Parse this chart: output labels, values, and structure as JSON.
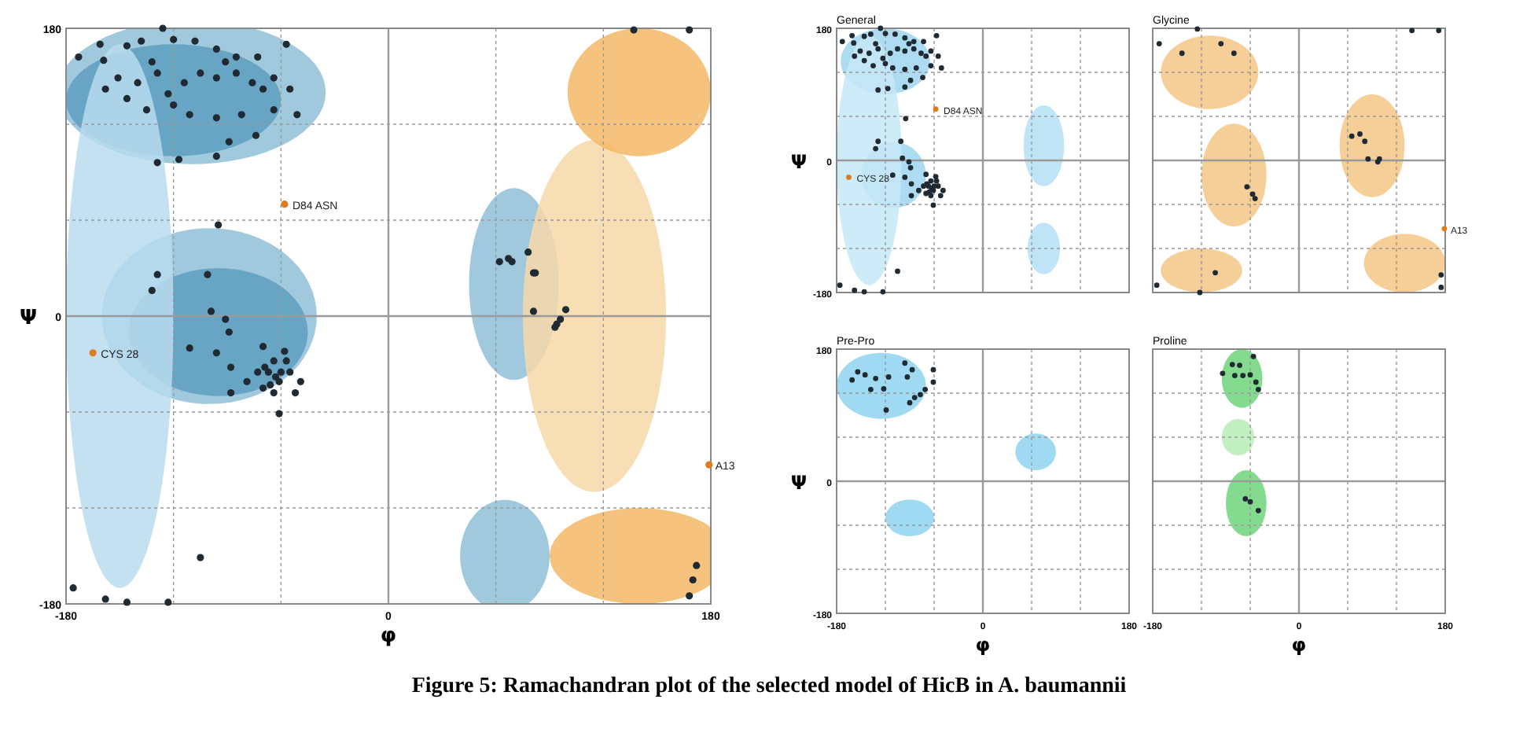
{
  "chart_data": [
    {
      "type": "scatter",
      "xlabel": "φ",
      "ylabel": "Ψ",
      "xlim": [
        -180,
        180
      ],
      "ylim": [
        -180,
        180
      ],
      "xticks": [
        -180,
        {
          "value": -120,
          "label": null
        },
        {
          "value": -60,
          "label": null
        },
        0,
        {
          "value": 60,
          "label": null
        },
        {
          "value": 120,
          "label": null
        },
        180
      ],
      "yticks": [
        -180,
        {
          "value": -120,
          "label": null
        },
        {
          "value": -60,
          "label": null
        },
        0,
        {
          "value": 60,
          "label": null
        },
        {
          "value": 120,
          "label": null
        },
        180
      ],
      "grid": true,
      "marker": "circle",
      "series": [
        {
          "color": "#1f2a33",
          "x": [
            -161,
            -159,
            -146,
            -138,
            -126,
            -120,
            -108,
            -96,
            -85,
            -73,
            -57,
            -151,
            -140,
            -129,
            -123,
            -114,
            -105,
            -96,
            -85,
            -76,
            -64,
            -55,
            -146,
            -135,
            -120,
            -111,
            -96,
            -82,
            -64,
            -51,
            -129,
            -117,
            -96,
            -89,
            -74,
            -132,
            -158,
            -173,
            -91,
            -70,
            -129,
            -101,
            -132,
            -99,
            -91,
            -89,
            -111,
            -96,
            -88,
            -88,
            -79,
            -70,
            -64,
            -67,
            -61,
            -58,
            -55,
            -70,
            -52,
            -61,
            -64,
            -69,
            -57,
            -60,
            -63,
            -66,
            -73,
            -49,
            -95,
            -105,
            -176,
            -158,
            -146,
            -123,
            62,
            67,
            69,
            78,
            81,
            82,
            81,
            93,
            94,
            96,
            99,
            137,
            168,
            172,
            170,
            168
          ],
          "values": [
            170,
            160,
            169,
            172,
            180,
            173,
            172,
            167,
            162,
            162,
            170,
            149,
            146,
            152,
            139,
            146,
            152,
            149,
            152,
            146,
            149,
            142,
            136,
            129,
            132,
            126,
            124,
            126,
            129,
            126,
            96,
            98,
            100,
            109,
            113,
            159,
            142,
            162,
            159,
            142,
            26,
            26,
            16,
            3,
            -2,
            -10,
            -20,
            -23,
            -32,
            -48,
            -41,
            -19,
            -28,
            -35,
            -41,
            -22,
            -35,
            -45,
            -48,
            -61,
            -48,
            -32,
            -28,
            -35,
            -38,
            -43,
            -35,
            -41,
            57,
            -151,
            -170,
            -177,
            -179,
            -179,
            34,
            36,
            34,
            40,
            27,
            27,
            3,
            -7,
            -5,
            -2,
            4,
            179,
            179,
            -156,
            -165,
            -175
          ]
        },
        {
          "color": "#e07b20",
          "x": [
            -58,
            -165,
            179
          ],
          "values": [
            70,
            -23,
            -93
          ]
        }
      ],
      "annotations": [
        {
          "text": "D84 ASN",
          "x": -58,
          "y": 70
        },
        {
          "text": "CYS 28",
          "x": -165,
          "y": -23
        },
        {
          "text": "A13",
          "x": 179,
          "y": -93
        },
        "Figure 5: Ramachandran plot of the selected model of HicB in A. baumannii"
      ]
    },
    {
      "type": "scatter",
      "title": "General",
      "ylabel": "Ψ",
      "xlim": [
        -180,
        180
      ],
      "ylim": [
        -180,
        180
      ],
      "tick_labels": "y",
      "xticks": [
        -180,
        {
          "value": -120,
          "label": null
        },
        {
          "value": -60,
          "label": null
        },
        0,
        {
          "value": 60,
          "label": null
        },
        {
          "value": 120,
          "label": null
        },
        180
      ],
      "yticks": [
        -180,
        {
          "value": -120,
          "label": null
        },
        {
          "value": -60,
          "label": null
        },
        0,
        {
          "value": 60,
          "label": null
        },
        {
          "value": 120,
          "label": null
        },
        180
      ],
      "grid": true,
      "marker": "circle",
      "series": [
        {
          "color": "#1f2a33",
          "x": [
            -161,
            -159,
            -146,
            -138,
            -126,
            -120,
            -108,
            -96,
            -85,
            -73,
            -57,
            -151,
            -140,
            -129,
            -123,
            -114,
            -105,
            -96,
            -85,
            -76,
            -64,
            -55,
            -146,
            -135,
            -120,
            -111,
            -96,
            -82,
            -64,
            -51,
            -129,
            -117,
            -96,
            -89,
            -74,
            -132,
            -158,
            -173,
            -91,
            -70,
            -129,
            -101,
            -132,
            -99,
            -91,
            -89,
            -111,
            -96,
            -88,
            -88,
            -79,
            -70,
            -64,
            -67,
            -61,
            -58,
            -55,
            -70,
            -52,
            -61,
            -64,
            -69,
            -57,
            -60,
            -63,
            -66,
            -73,
            -49,
            -95,
            -105,
            -176,
            -158,
            -146,
            -123
          ],
          "values": [
            170,
            160,
            169,
            172,
            180,
            173,
            172,
            167,
            162,
            162,
            170,
            149,
            146,
            152,
            139,
            146,
            152,
            149,
            152,
            146,
            149,
            142,
            136,
            129,
            132,
            126,
            124,
            126,
            129,
            126,
            96,
            98,
            100,
            109,
            113,
            159,
            142,
            162,
            159,
            142,
            26,
            26,
            16,
            3,
            -2,
            -10,
            -20,
            -23,
            -32,
            -48,
            -41,
            -19,
            -28,
            -35,
            -41,
            -22,
            -35,
            -45,
            -48,
            -61,
            -48,
            -32,
            -28,
            -35,
            -38,
            -43,
            -35,
            -41,
            57,
            -151,
            -170,
            -177,
            -179,
            -179
          ]
        },
        {
          "color": "#e07b20",
          "x": [
            -58,
            -165
          ],
          "values": [
            70,
            -23
          ]
        }
      ],
      "annotations": [
        {
          "text": "D84 ASN",
          "x": -58,
          "y": 70
        },
        {
          "text": "CYS 28",
          "x": -165,
          "y": -23
        }
      ]
    },
    {
      "type": "scatter",
      "title": "Glycine",
      "xlim": [
        -180,
        180
      ],
      "ylim": [
        -180,
        180
      ],
      "tick_labels": false,
      "xticks": [
        -180,
        {
          "value": -120,
          "label": null
        },
        {
          "value": -60,
          "label": null
        },
        0,
        {
          "value": 60,
          "label": null
        },
        {
          "value": 120,
          "label": null
        },
        180
      ],
      "yticks": [
        -180,
        {
          "value": -120,
          "label": null
        },
        {
          "value": -60,
          "label": null
        },
        0,
        {
          "value": 60,
          "label": null
        },
        {
          "value": 120,
          "label": null
        },
        180
      ],
      "grid": true,
      "marker": "circle",
      "series": [
        {
          "color": "#1f2a33",
          "x": [
            -172,
            -125,
            -96,
            -80,
            -144,
            -64,
            -57,
            -54,
            -103,
            -175,
            -122,
            65,
            75,
            81,
            85,
            97,
            99,
            139,
            172,
            175,
            175
          ],
          "values": [
            159,
            179,
            159,
            146,
            146,
            -36,
            -46,
            -52,
            -153,
            -170,
            -180,
            33,
            36,
            26,
            2,
            -2,
            2,
            177,
            177,
            -156,
            -173
          ]
        },
        {
          "color": "#e07b20",
          "x": [
            179
          ],
          "values": [
            -93
          ]
        }
      ],
      "annotations": [
        {
          "text": "A13",
          "x": 179,
          "y": -93
        }
      ]
    },
    {
      "type": "scatter",
      "title": "Pre-Pro",
      "xlabel": "φ",
      "ylabel": "Ψ",
      "xlim": [
        -180,
        180
      ],
      "ylim": [
        -180,
        180
      ],
      "xticks": [
        -180,
        {
          "value": -120,
          "label": null
        },
        {
          "value": -60,
          "label": null
        },
        0,
        {
          "value": 60,
          "label": null
        },
        {
          "value": 120,
          "label": null
        },
        180
      ],
      "yticks": [
        -180,
        {
          "value": -120,
          "label": null
        },
        {
          "value": -60,
          "label": null
        },
        0,
        {
          "value": 60,
          "label": null
        },
        {
          "value": 120,
          "label": null
        },
        180
      ],
      "grid": true,
      "marker": "circle",
      "series": [
        {
          "color": "#1f2a33",
          "x": [
            -161,
            -154,
            -145,
            -138,
            -132,
            -122,
            -119,
            -116,
            -96,
            -87,
            -93,
            -84,
            -90,
            -77,
            -71,
            -61,
            -61
          ],
          "values": [
            138,
            149,
            145,
            125,
            140,
            126,
            97,
            142,
            161,
            152,
            142,
            114,
            107,
            118,
            125,
            152,
            135
          ]
        }
      ]
    },
    {
      "type": "scatter",
      "title": "Proline",
      "xlabel": "φ",
      "xlim": [
        -180,
        180
      ],
      "ylim": [
        -180,
        180
      ],
      "tick_labels": "x",
      "xticks": [
        -180,
        {
          "value": -120,
          "label": null
        },
        {
          "value": -60,
          "label": null
        },
        0,
        {
          "value": 60,
          "label": null
        },
        {
          "value": 120,
          "label": null
        },
        180
      ],
      "yticks": [
        -180,
        {
          "value": -120,
          "label": null
        },
        {
          "value": -60,
          "label": null
        },
        0,
        {
          "value": 60,
          "label": null
        },
        {
          "value": 120,
          "label": null
        },
        180
      ],
      "grid": true,
      "marker": "circle",
      "series": [
        {
          "color": "#1f2a33",
          "x": [
            -94,
            -82,
            -73,
            -56,
            -79,
            -69,
            -60,
            -53,
            -50,
            -66,
            -60,
            -50
          ],
          "values": [
            147,
            159,
            158,
            170,
            144,
            144,
            145,
            135,
            125,
            -24,
            -28,
            -40
          ]
        }
      ]
    }
  ]
}
